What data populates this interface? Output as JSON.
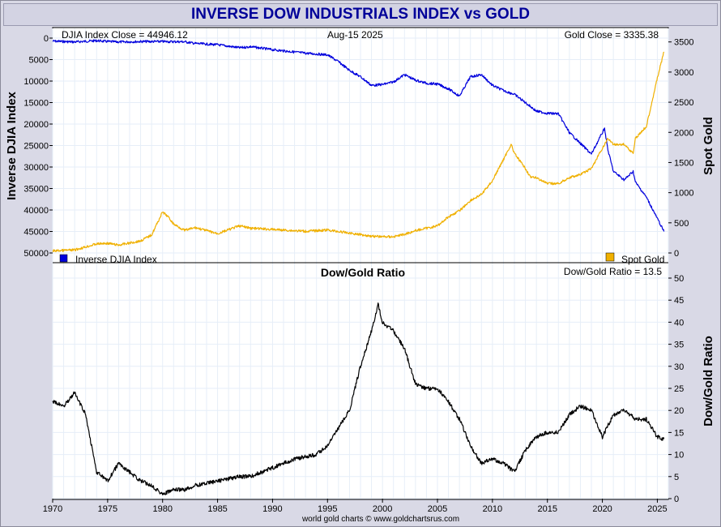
{
  "header": {
    "title": "INVERSE DOW INDUSTRIALS INDEX vs GOLD"
  },
  "top_panel": {
    "djia_close_label": "DJIA Index Close = 44946.12",
    "date_label": "Aug-15  2025",
    "gold_close_label": "Gold Close = 3335.38",
    "left_axis_title": "Inverse DJIA Index",
    "right_axis_title": "Spot Gold",
    "legend_left": "Inverse DJIA Index",
    "legend_right": "Spot Gold"
  },
  "bottom_panel": {
    "title": "Dow/Gold Ratio",
    "ratio_label": "Dow/Gold Ratio = 13.5",
    "right_axis_title": "Dow/Gold Ratio"
  },
  "credit": "world gold charts © www.goldchartsrus.com",
  "colors": {
    "djia": "#0000dd",
    "gold": "#f0b000",
    "ratio": "#000000",
    "grid": "#e6eef8"
  },
  "chart_data": [
    {
      "type": "line",
      "title": "INVERSE DOW INDUSTRIALS INDEX vs GOLD",
      "x_ticks": [
        "1970",
        "1975",
        "1980",
        "1985",
        "1990",
        "1995",
        "2000",
        "2005",
        "2010",
        "2015",
        "2020",
        "2025"
      ],
      "xlim": [
        1970,
        2026
      ],
      "left_axis": {
        "label": "Inverse DJIA Index",
        "ylim": [
          0,
          50000
        ],
        "inverted": true,
        "ticks": [
          "0",
          "5000",
          "10000",
          "15000",
          "20000",
          "25000",
          "30000",
          "35000",
          "40000",
          "45000",
          "50000"
        ]
      },
      "right_axis": {
        "label": "Spot Gold",
        "ylim": [
          0,
          3550
        ],
        "ticks": [
          "0",
          "500",
          "1000",
          "1500",
          "2000",
          "2500",
          "3000",
          "3500"
        ]
      },
      "grid": true,
      "legend": "bottom",
      "series": [
        {
          "name": "Inverse DJIA Index",
          "axis": "left",
          "color": "#0000dd",
          "x": [
            1970,
            1972,
            1974,
            1975,
            1976,
            1978,
            1980,
            1982,
            1983,
            1985,
            1987,
            1988,
            1990,
            1993,
            1995,
            1996,
            1997,
            1998,
            1999,
            2000,
            2001,
            2002,
            2003,
            2004,
            2005,
            2006,
            2007,
            2008,
            2009,
            2010,
            2011,
            2012,
            2013,
            2014,
            2015,
            2016,
            2017,
            2018,
            2019,
            2020.2,
            2020.5,
            2021,
            2022,
            2022.8,
            2023,
            2024,
            2025,
            2025.6
          ],
          "y": [
            700,
            900,
            600,
            800,
            900,
            800,
            800,
            850,
            1250,
            1550,
            2250,
            2000,
            2700,
            3500,
            3900,
            5500,
            7500,
            9000,
            11000,
            10800,
            10200,
            8500,
            9800,
            10500,
            10700,
            11800,
            13500,
            9000,
            8500,
            11000,
            12200,
            13100,
            15000,
            17000,
            17500,
            17600,
            22000,
            24500,
            27000,
            21000,
            26000,
            31000,
            33000,
            31000,
            33500,
            37000,
            42000,
            45000
          ]
        },
        {
          "name": "Spot Gold",
          "axis": "right",
          "color": "#f0b000",
          "x": [
            1970,
            1972,
            1974,
            1975,
            1976,
            1978,
            1979,
            1980,
            1980.5,
            1981,
            1982,
            1983,
            1985,
            1987,
            1988,
            1990,
            1993,
            1995,
            1997,
            1999,
            2000,
            2001,
            2002,
            2003,
            2004,
            2005,
            2006,
            2007,
            2008,
            2009,
            2010,
            2011,
            2011.7,
            2012,
            2013,
            2013.5,
            2014,
            2015,
            2016,
            2017,
            2018,
            2019,
            2020.5,
            2021,
            2022,
            2022.8,
            2023,
            2024,
            2025,
            2025.6
          ],
          "y": [
            35,
            50,
            150,
            160,
            130,
            200,
            300,
            680,
            600,
            480,
            375,
            420,
            320,
            450,
            410,
            390,
            360,
            380,
            330,
            280,
            270,
            270,
            310,
            370,
            410,
            450,
            600,
            700,
            870,
            970,
            1200,
            1550,
            1800,
            1650,
            1400,
            1250,
            1250,
            1150,
            1150,
            1250,
            1300,
            1400,
            1900,
            1800,
            1800,
            1650,
            1900,
            2100,
            2900,
            3335
          ]
        }
      ]
    },
    {
      "type": "line",
      "title": "Dow/Gold Ratio",
      "xlim": [
        1970,
        2026
      ],
      "ylim": [
        0,
        50
      ],
      "ticks": [
        "0",
        "5",
        "10",
        "15",
        "20",
        "25",
        "30",
        "35",
        "40",
        "45",
        "50"
      ],
      "grid": true,
      "series": [
        {
          "name": "Dow/Gold Ratio",
          "color": "#000000",
          "x": [
            1970,
            1971,
            1972,
            1973,
            1974,
            1975,
            1976,
            1977,
            1978,
            1979,
            1980,
            1981,
            1982,
            1983,
            1985,
            1987,
            1988,
            1990,
            1992,
            1994,
            1995,
            1996,
            1997,
            1998,
            1999,
            1999.6,
            2000,
            2001,
            2002,
            2003,
            2004,
            2005,
            2006,
            2007,
            2008,
            2009,
            2010,
            2011,
            2012,
            2013,
            2014,
            2015,
            2016,
            2017,
            2018,
            2019,
            2020,
            2021,
            2022,
            2023,
            2024,
            2025,
            2025.6
          ],
          "y": [
            22,
            21,
            24,
            19,
            6,
            4,
            8,
            6,
            4,
            3,
            1,
            2,
            2,
            3,
            4,
            5,
            5,
            7,
            9,
            10,
            12,
            16,
            20,
            30,
            38,
            44,
            40,
            38,
            34,
            26,
            25,
            25,
            22,
            18,
            12,
            8,
            9,
            8,
            6,
            11,
            14,
            15,
            15,
            19,
            21,
            20,
            14,
            19,
            20,
            18,
            18,
            14,
            13.5
          ]
        }
      ]
    }
  ]
}
